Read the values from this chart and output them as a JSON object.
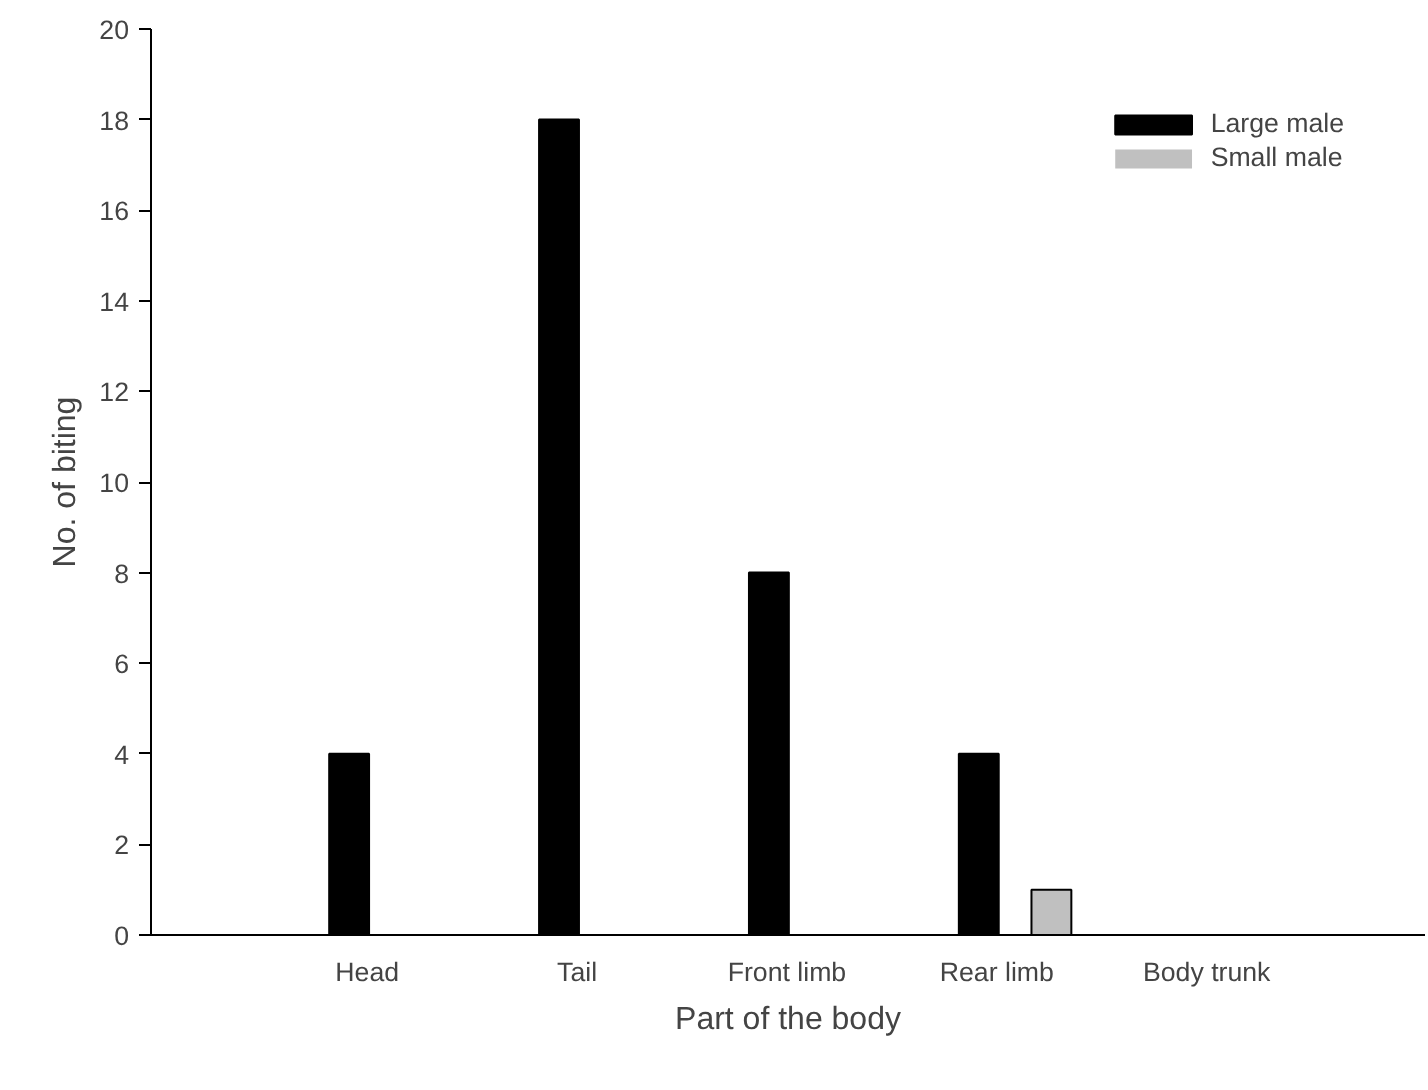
{
  "chart_data": {
    "type": "bar",
    "xlabel": "Part of the body",
    "ylabel": "No. of biting",
    "categories": [
      "Head",
      "Tail",
      "Front limb",
      "Rear limb",
      "Body trunk"
    ],
    "series": [
      {
        "name": "Large male",
        "color": "#000000",
        "values": [
          4,
          18,
          8,
          4,
          0
        ]
      },
      {
        "name": "Small male",
        "color": "#c0c0c0",
        "values": [
          0,
          0,
          0,
          1,
          0
        ]
      }
    ],
    "ylim": [
      0,
      20
    ],
    "yticks": [
      0,
      2,
      4,
      6,
      8,
      10,
      12,
      14,
      16,
      18,
      20
    ],
    "grid": false,
    "legend": "top right"
  }
}
